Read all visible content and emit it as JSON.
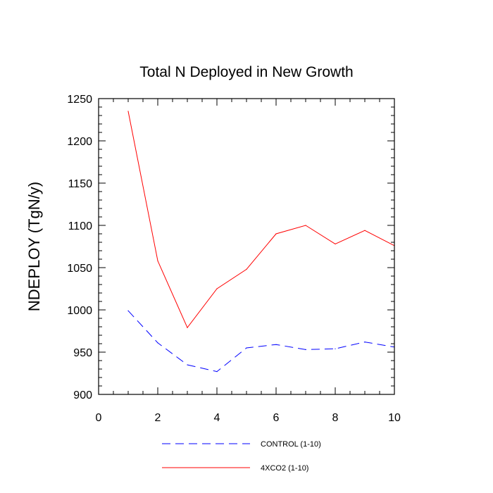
{
  "chart_data": {
    "type": "line",
    "title": "Total N Deployed in New Growth",
    "xlabel": "",
    "ylabel": "NDEPLOY  (TgN/y)",
    "xlim": [
      0,
      10
    ],
    "ylim": [
      900,
      1250
    ],
    "x_ticks": [
      0,
      2,
      4,
      6,
      8,
      10
    ],
    "y_ticks": [
      900,
      950,
      1000,
      1050,
      1100,
      1150,
      1200,
      1250
    ],
    "x_minor_step": 0.5,
    "y_minor_step": 10,
    "grid": false,
    "legend_position": "bottom-center",
    "x": [
      1,
      2,
      3,
      4,
      5,
      6,
      7,
      8,
      9,
      10
    ],
    "series": [
      {
        "name": "CONTROL (1-10)",
        "color": "#0000ff",
        "style": "dashed",
        "values": [
          999,
          961,
          935,
          927,
          955,
          959,
          953,
          954,
          962,
          956
        ]
      },
      {
        "name": "4XCO2 (1-10)",
        "color": "#ff0000",
        "style": "solid",
        "values": [
          1235,
          1058,
          979,
          1025,
          1048,
          1090,
          1100,
          1078,
          1094,
          1076
        ]
      }
    ]
  }
}
